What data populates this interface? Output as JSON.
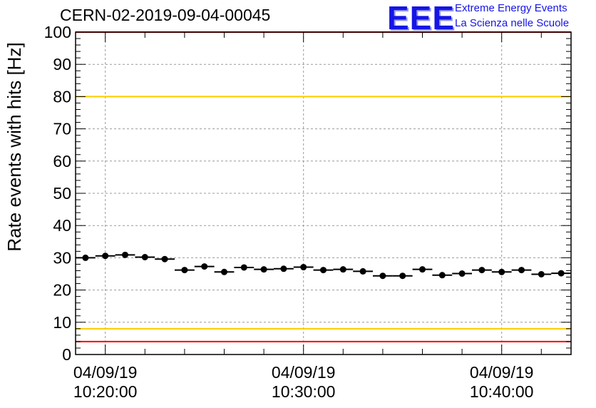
{
  "header": {
    "title": "CERN-02-2019-09-04-00045",
    "logo_text": "EEE",
    "org_line1": "Extreme Energy Events",
    "org_line2": "La Scienza nelle Scuole"
  },
  "colors": {
    "logo": "#1515e6",
    "red_limit": "#ff0000",
    "yellow_limit": "#ffcc00",
    "grid": "#999999",
    "markers": "#000000"
  },
  "chart_data": {
    "type": "scatter",
    "title": "CERN-02-2019-09-04-00045",
    "xlabel": "",
    "ylabel": "Rate events with hits [Hz]",
    "ylim": [
      0,
      100
    ],
    "yticks": [
      0,
      10,
      20,
      30,
      40,
      50,
      60,
      70,
      80,
      90,
      100
    ],
    "xlim": [
      "04/09/19 10:18:30",
      "04/09/19 10:43:30"
    ],
    "xticks": [
      {
        "time": "10:20:00",
        "date": "04/09/19",
        "time_label": "10:20:00"
      },
      {
        "time": "10:30:00",
        "date": "04/09/19",
        "time_label": "10:30:00"
      },
      {
        "time": "10:40:00",
        "date": "04/09/19",
        "time_label": "10:40:00"
      }
    ],
    "grid": true,
    "bin_width_seconds": 60,
    "series": [
      {
        "x": [
          "10:19:00",
          "10:20:00",
          "10:21:00",
          "10:22:00",
          "10:23:00",
          "10:24:00",
          "10:25:00",
          "10:26:00",
          "10:27:00",
          "10:28:00",
          "10:29:00",
          "10:30:00",
          "10:31:00",
          "10:32:00",
          "10:33:00",
          "10:34:00",
          "10:35:00",
          "10:36:00",
          "10:37:00",
          "10:38:00",
          "10:39:00",
          "10:40:00",
          "10:41:00",
          "10:42:00",
          "10:43:00"
        ],
        "y": [
          30.0,
          30.6,
          30.9,
          30.2,
          29.6,
          26.2,
          27.3,
          25.6,
          27.0,
          26.4,
          26.6,
          27.1,
          26.2,
          26.4,
          25.8,
          24.4,
          24.4,
          26.4,
          24.6,
          25.1,
          26.2,
          25.6,
          26.2,
          24.9,
          25.2
        ]
      }
    ],
    "reference_lines": [
      {
        "y": 100,
        "color": "#ff0000"
      },
      {
        "y": 80,
        "color": "#ffcc00"
      },
      {
        "y": 8,
        "color": "#ffcc00"
      },
      {
        "y": 4,
        "color": "#ff0000"
      }
    ]
  }
}
